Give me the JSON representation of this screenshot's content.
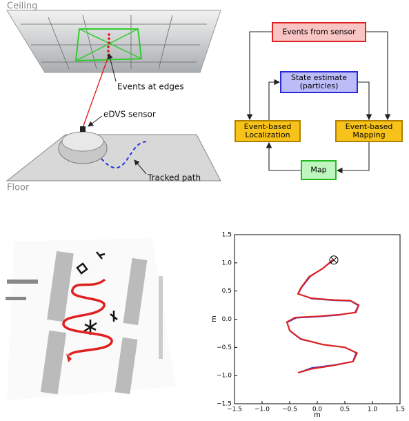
{
  "illustration": {
    "ceiling": "Ceiling",
    "floor": "Floor",
    "events": "Events at edges",
    "sensor": "eDVS sensor",
    "path": "Tracked path"
  },
  "diagram": {
    "nodes": [
      {
        "label": [
          "Events from sensor"
        ]
      },
      {
        "label": [
          "State estimate",
          "(particles)"
        ]
      },
      {
        "label": [
          "Event-based",
          "Localization"
        ]
      },
      {
        "label": [
          "Event-based",
          "Mapping"
        ]
      },
      {
        "label": [
          "Map"
        ]
      }
    ]
  },
  "chart_data": {
    "type": "line",
    "xlabel": "m",
    "ylabel": "m",
    "xlim": [
      -1.5,
      1.5
    ],
    "ylim": [
      -1.5,
      1.5
    ],
    "xticks": [
      {
        "value": -1.5,
        "label": "−1.5"
      },
      {
        "value": -1.0,
        "label": "−1.0"
      },
      {
        "value": -0.5,
        "label": "−0.5"
      },
      {
        "value": 0,
        "label": "0.0"
      },
      0.5,
      {
        "value": 1.0,
        "label": "1.0"
      },
      1.5
    ],
    "yticks": [
      {
        "value": -1.5,
        "label": "−1.5"
      },
      {
        "value": -1.0,
        "label": "−1.0"
      },
      {
        "value": -0.5,
        "label": "−0.5"
      },
      {
        "value": 0,
        "label": "0.0"
      },
      0.5,
      {
        "value": 1.0,
        "label": "1.0"
      },
      1.5
    ],
    "series": [
      {
        "color": "#3333dd",
        "x": [
          0.3,
          0.12,
          -0.12,
          -0.28,
          -0.34,
          -0.1,
          0.3,
          0.6,
          0.74,
          0.68,
          0.4,
          0.0,
          -0.38,
          -0.54,
          -0.5,
          -0.3,
          0.1,
          0.5,
          0.7,
          0.64,
          0.3,
          -0.1,
          -0.3
        ],
        "values": [
          1.05,
          0.91,
          0.76,
          0.56,
          0.45,
          0.36,
          0.33,
          0.32,
          0.24,
          0.12,
          0.07,
          0.04,
          0.02,
          -0.06,
          -0.21,
          -0.36,
          -0.45,
          -0.5,
          -0.6,
          -0.75,
          -0.81,
          -0.86,
          -0.93
        ]
      },
      {
        "color": "#dd2222",
        "x": [
          0.28,
          0.1,
          -0.15,
          -0.3,
          -0.35,
          -0.1,
          0.3,
          0.6,
          0.75,
          0.7,
          0.4,
          0.0,
          -0.4,
          -0.55,
          -0.5,
          -0.3,
          0.1,
          0.5,
          0.72,
          0.65,
          0.3,
          -0.1,
          -0.35
        ],
        "values": [
          1.05,
          0.9,
          0.75,
          0.55,
          0.45,
          0.37,
          0.34,
          0.33,
          0.25,
          0.12,
          0.08,
          0.05,
          0.03,
          -0.05,
          -0.2,
          -0.35,
          -0.45,
          -0.5,
          -0.6,
          -0.75,
          -0.82,
          -0.88,
          -0.95
        ]
      }
    ]
  }
}
